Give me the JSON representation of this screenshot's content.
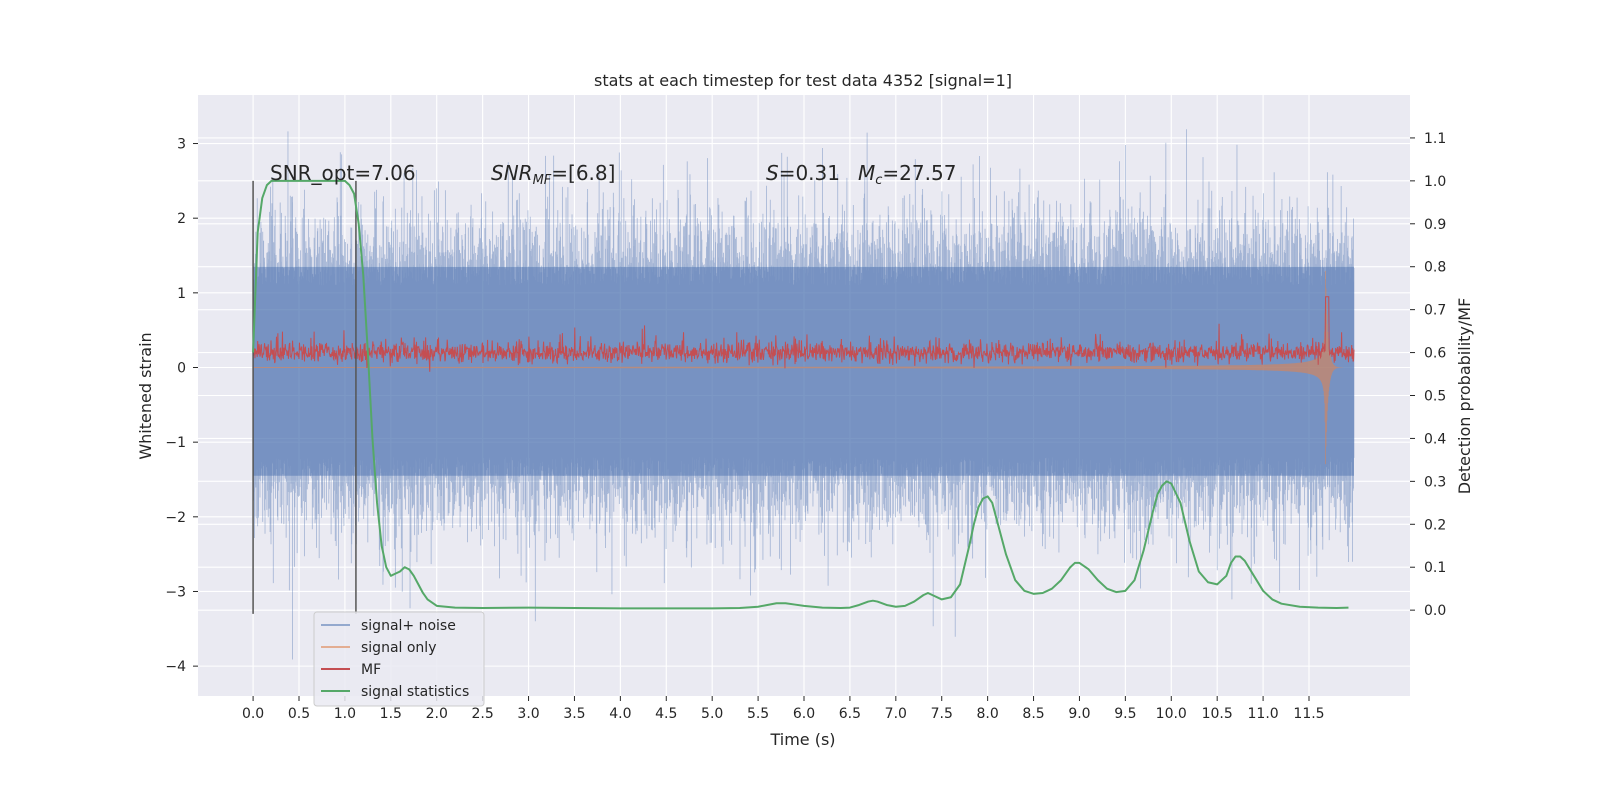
{
  "chart_data": {
    "type": "line",
    "title": "stats at each timestep for test data 4352 [signal=1]",
    "xlabel": "Time (s)",
    "ylabel": "Whitened strain",
    "ylabel_right": "Detection probability/MF",
    "xlim": [
      -0.6,
      12.6
    ],
    "ylim": [
      -4.4,
      3.65
    ],
    "ylim_right": [
      -0.2,
      1.2
    ],
    "x_ticks": [
      0.0,
      0.5,
      1.0,
      1.5,
      2.0,
      2.5,
      3.0,
      3.5,
      4.0,
      4.5,
      5.0,
      5.5,
      6.0,
      6.5,
      7.0,
      7.5,
      8.0,
      8.5,
      9.0,
      9.5,
      10.0,
      10.5,
      11.0,
      11.5
    ],
    "x_tick_labels": [
      "0.0",
      "0.5",
      "1.0",
      "1.5",
      "2.0",
      "2.5",
      "3.0",
      "3.5",
      "4.0",
      "4.5",
      "5.0",
      "5.5",
      "6.0",
      "6.5",
      "7.0",
      "7.5",
      "8.0",
      "8.5",
      "9.0",
      "9.5",
      "10.0",
      "10.5",
      "11.0",
      "11.5"
    ],
    "y_ticks": [
      -4,
      -3,
      -2,
      -1,
      0,
      1,
      2,
      3
    ],
    "y_tick_labels": [
      "−4",
      "−3",
      "−2",
      "−1",
      "0",
      "1",
      "2",
      "3"
    ],
    "y_right_ticks": [
      0.0,
      0.1,
      0.2,
      0.3,
      0.4,
      0.5,
      0.6,
      0.7,
      0.8,
      0.9,
      1.0,
      1.1
    ],
    "y_right_tick_labels": [
      "0.0",
      "0.1",
      "0.2",
      "0.3",
      "0.4",
      "0.5",
      "0.6",
      "0.7",
      "0.8",
      "0.9",
      "1.0",
      "1.1"
    ],
    "grid": true,
    "legend_position": "lower-left",
    "annotations": {
      "snr_opt": "SNR_opt=7.06",
      "snr_mf_main": "SNR",
      "snr_mf_sub": "MF",
      "snr_mf_value": "=[6.8]",
      "s_symbol": "S",
      "s_value": "=0.31",
      "mc_symbol": "M",
      "mc_sub": "c",
      "mc_value": "=27.57"
    },
    "vlines": [
      {
        "x": 0.0,
        "y_range": [
          -3.3,
          2.5
        ]
      },
      {
        "x": 1.12,
        "y_range": [
          -3.3,
          2.5
        ]
      }
    ],
    "series": [
      {
        "name": "signal+ noise",
        "color": "#4c72b0",
        "axis": "left",
        "description_values": {
          "x_range": [
            0.0,
            11.99
          ],
          "typical_band": [
            -1.5,
            1.5
          ],
          "peak_max": 3.3,
          "peak_min": -4.1
        }
      },
      {
        "name": "signal only",
        "color": "#dd8452",
        "axis": "left",
        "description_values": {
          "x_range": [
            0.0,
            11.99
          ],
          "chirp_peak_time": 11.68,
          "chirp_peak_amplitude": 1.3
        }
      },
      {
        "name": "MF",
        "color": "#c44e52",
        "axis": "right",
        "description_values": {
          "x_range": [
            0.0,
            11.99
          ],
          "baseline": 0.6,
          "spike_time": 11.7,
          "spike_value": 0.73
        }
      },
      {
        "name": "signal statistics",
        "color": "#55a868",
        "axis": "right",
        "x": [
          0.0,
          0.05,
          0.1,
          0.15,
          0.2,
          0.3,
          0.4,
          0.5,
          0.6,
          0.7,
          0.8,
          0.9,
          1.0,
          1.05,
          1.1,
          1.15,
          1.2,
          1.25,
          1.3,
          1.35,
          1.4,
          1.45,
          1.5,
          1.55,
          1.6,
          1.65,
          1.7,
          1.75,
          1.8,
          1.85,
          1.9,
          2.0,
          2.2,
          2.5,
          3.0,
          3.5,
          4.0,
          4.5,
          5.0,
          5.3,
          5.5,
          5.6,
          5.7,
          5.8,
          5.9,
          6.0,
          6.2,
          6.4,
          6.5,
          6.6,
          6.7,
          6.75,
          6.8,
          6.9,
          7.0,
          7.1,
          7.2,
          7.3,
          7.35,
          7.4,
          7.5,
          7.6,
          7.7,
          7.8,
          7.85,
          7.9,
          7.95,
          8.0,
          8.05,
          8.1,
          8.2,
          8.3,
          8.4,
          8.5,
          8.6,
          8.7,
          8.8,
          8.9,
          8.95,
          9.0,
          9.1,
          9.2,
          9.3,
          9.4,
          9.5,
          9.6,
          9.7,
          9.8,
          9.85,
          9.9,
          9.95,
          10.0,
          10.1,
          10.2,
          10.3,
          10.4,
          10.5,
          10.6,
          10.65,
          10.7,
          10.75,
          10.8,
          10.9,
          11.0,
          11.1,
          11.2,
          11.4,
          11.6,
          11.8,
          11.93
        ],
        "y": [
          0.6,
          0.88,
          0.96,
          0.99,
          1.0,
          1.0,
          1.0,
          1.0,
          1.0,
          1.0,
          1.0,
          1.0,
          1.0,
          0.99,
          0.97,
          0.9,
          0.78,
          0.6,
          0.4,
          0.25,
          0.15,
          0.1,
          0.08,
          0.085,
          0.09,
          0.1,
          0.095,
          0.08,
          0.06,
          0.04,
          0.025,
          0.01,
          0.006,
          0.005,
          0.006,
          0.005,
          0.004,
          0.004,
          0.004,
          0.005,
          0.008,
          0.012,
          0.016,
          0.016,
          0.013,
          0.01,
          0.006,
          0.005,
          0.006,
          0.012,
          0.02,
          0.022,
          0.02,
          0.012,
          0.008,
          0.01,
          0.02,
          0.035,
          0.04,
          0.035,
          0.025,
          0.03,
          0.06,
          0.15,
          0.2,
          0.24,
          0.26,
          0.265,
          0.25,
          0.21,
          0.13,
          0.07,
          0.045,
          0.038,
          0.04,
          0.05,
          0.07,
          0.1,
          0.11,
          0.11,
          0.095,
          0.07,
          0.05,
          0.042,
          0.045,
          0.07,
          0.14,
          0.23,
          0.27,
          0.29,
          0.3,
          0.295,
          0.25,
          0.16,
          0.09,
          0.065,
          0.06,
          0.08,
          0.11,
          0.125,
          0.125,
          0.115,
          0.08,
          0.045,
          0.025,
          0.015,
          0.008,
          0.006,
          0.005,
          0.006
        ]
      }
    ]
  }
}
